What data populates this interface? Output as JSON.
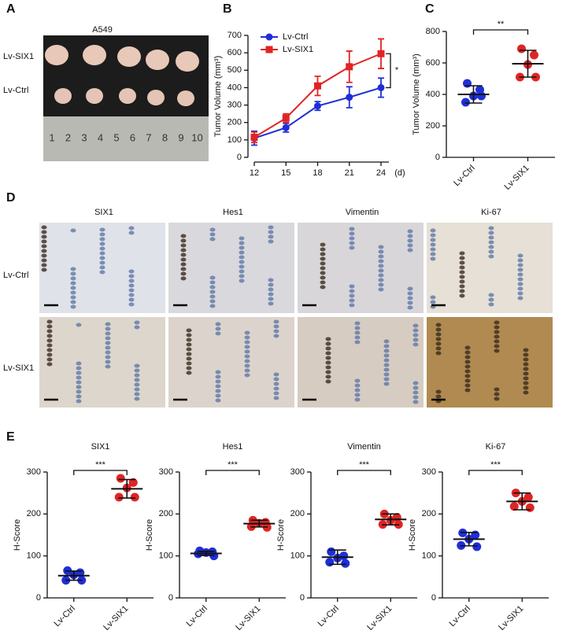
{
  "panel_letters": [
    "A",
    "B",
    "C",
    "D",
    "E"
  ],
  "panel_a": {
    "title": "A549",
    "rows": [
      "Lv-SIX1",
      "Lv-Ctrl"
    ],
    "ruler": [
      "1",
      "2",
      "3",
      "4",
      "5",
      "6",
      "7",
      "8",
      "9",
      "10"
    ]
  },
  "panel_d": {
    "columns": [
      "SIX1",
      "Hes1",
      "Vimentin",
      "Ki-67"
    ],
    "rows": [
      "Lv-Ctrl",
      "Lv-SIX1"
    ]
  },
  "chart_data": [
    {
      "type": "line",
      "ylabel": "Tumor Volume (mm³)",
      "xlabel": "(d)",
      "annotation": "*",
      "x": [
        12,
        15,
        18,
        21,
        24
      ],
      "xlim": [
        12,
        24
      ],
      "xticks": [
        12,
        15,
        18,
        21,
        24
      ],
      "ylim": [
        0,
        700
      ],
      "yticks": [
        0,
        100,
        200,
        300,
        400,
        500,
        600,
        700
      ],
      "legend": "upper-left",
      "series": [
        {
          "name": "Lv-Ctrl",
          "color": "#1f2fd6",
          "marker": "circle",
          "values": [
            110,
            170,
            295,
            345,
            400
          ],
          "errors": [
            40,
            25,
            25,
            60,
            55
          ]
        },
        {
          "name": "Lv-SIX1",
          "color": "#e02424",
          "marker": "square",
          "values": [
            115,
            225,
            410,
            520,
            595
          ],
          "errors": [
            30,
            25,
            55,
            90,
            85
          ]
        }
      ]
    },
    {
      "type": "dot",
      "ylabel": "Tumor Volume (mm³)",
      "annotation": "**",
      "categories": [
        "Lv-Ctrl",
        "Lv-SIX1"
      ],
      "ylim": [
        0,
        800
      ],
      "yticks": [
        0,
        200,
        400,
        600,
        800
      ],
      "groups": [
        {
          "color": "#1f2fd6",
          "values": [
            470,
            430,
            390,
            350,
            390
          ],
          "mean": 400,
          "sd": 55
        },
        {
          "color": "#e02424",
          "values": [
            690,
            650,
            590,
            510,
            510
          ],
          "mean": 595,
          "sd": 85
        }
      ]
    },
    {
      "type": "dot",
      "title": "SIX1",
      "ylabel": "H-Score",
      "annotation": "***",
      "categories": [
        "Lv-Ctrl",
        "Lv-SIX1"
      ],
      "ylim": [
        0,
        300
      ],
      "yticks": [
        0,
        100,
        200,
        300
      ],
      "groups": [
        {
          "color": "#1f2fd6",
          "values": [
            65,
            60,
            55,
            42,
            42
          ],
          "mean": 53,
          "sd": 11
        },
        {
          "color": "#e02424",
          "values": [
            285,
            275,
            262,
            240,
            240
          ],
          "mean": 260,
          "sd": 22
        }
      ]
    },
    {
      "type": "dot",
      "title": "Hes1",
      "ylabel": "H-Score",
      "annotation": "***",
      "categories": [
        "Lv-Ctrl",
        "Lv-SIX1"
      ],
      "ylim": [
        0,
        300
      ],
      "yticks": [
        0,
        100,
        200,
        300
      ],
      "groups": [
        {
          "color": "#1f2fd6",
          "values": [
            112,
            110,
            108,
            105,
            100
          ],
          "mean": 106,
          "sd": 5
        },
        {
          "color": "#e02424",
          "values": [
            185,
            180,
            178,
            170,
            168
          ],
          "mean": 177,
          "sd": 8
        }
      ]
    },
    {
      "type": "dot",
      "title": "Vimentin",
      "ylabel": "H-Score",
      "annotation": "***",
      "categories": [
        "Lv-Ctrl",
        "Lv-SIX1"
      ],
      "ylim": [
        0,
        300
      ],
      "yticks": [
        0,
        100,
        200,
        300
      ],
      "groups": [
        {
          "color": "#1f2fd6",
          "values": [
            110,
            100,
            95,
            85,
            82
          ],
          "mean": 97,
          "sd": 17
        },
        {
          "color": "#e02424",
          "values": [
            200,
            192,
            185,
            175,
            175
          ],
          "mean": 187,
          "sd": 13
        }
      ]
    },
    {
      "type": "dot",
      "title": "Ki-67",
      "ylabel": "H-Score",
      "annotation": "***",
      "categories": [
        "Lv-Ctrl",
        "Lv-SIX1"
      ],
      "ylim": [
        0,
        300
      ],
      "yticks": [
        0,
        100,
        200,
        300
      ],
      "groups": [
        {
          "color": "#1f2fd6",
          "values": [
            155,
            150,
            140,
            125,
            122
          ],
          "mean": 140,
          "sd": 16
        },
        {
          "color": "#e02424",
          "values": [
            250,
            240,
            230,
            218,
            215
          ],
          "mean": 230,
          "sd": 20
        }
      ]
    }
  ]
}
